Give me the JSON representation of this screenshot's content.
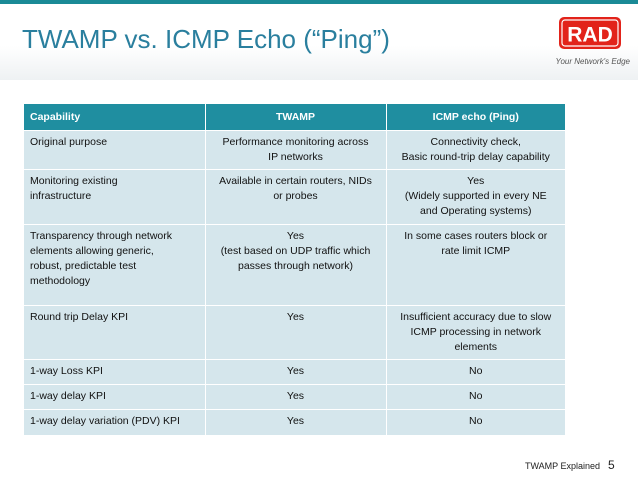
{
  "slide": {
    "title": "TWAMP vs. ICMP Echo (“Ping”)",
    "footer_label": "TWAMP Explained",
    "page_number": "5"
  },
  "logo": {
    "text": "RAD",
    "tagline": "Your Network's Edge",
    "color": "#e2231a"
  },
  "table": {
    "headers": [
      "Capability",
      "TWAMP",
      "ICMP echo (Ping)"
    ],
    "rows": [
      [
        "Original purpose",
        "Performance monitoring across\nIP networks",
        "Connectivity check,\nBasic round-trip delay capability"
      ],
      [
        "Monitoring existing\ninfrastructure",
        "Available in certain routers, NIDs\nor probes",
        "Yes\n(Widely supported in every NE\nand Operating systems)"
      ],
      [
        "Transparency through network\nelements allowing generic,\nrobust, predictable test\nmethodology",
        "Yes\n(test based on UDP traffic which\npasses through network)",
        "In some cases routers block or\nrate limit ICMP"
      ],
      [
        "Round trip Delay KPI",
        "Yes",
        "Insufficient accuracy due to slow\nICMP processing in network\nelements"
      ],
      [
        "1-way Loss  KPI",
        "Yes",
        "No"
      ],
      [
        "1-way delay KPI",
        "Yes",
        "No"
      ],
      [
        "1-way delay variation (PDV) KPI",
        "Yes",
        "No"
      ]
    ]
  }
}
